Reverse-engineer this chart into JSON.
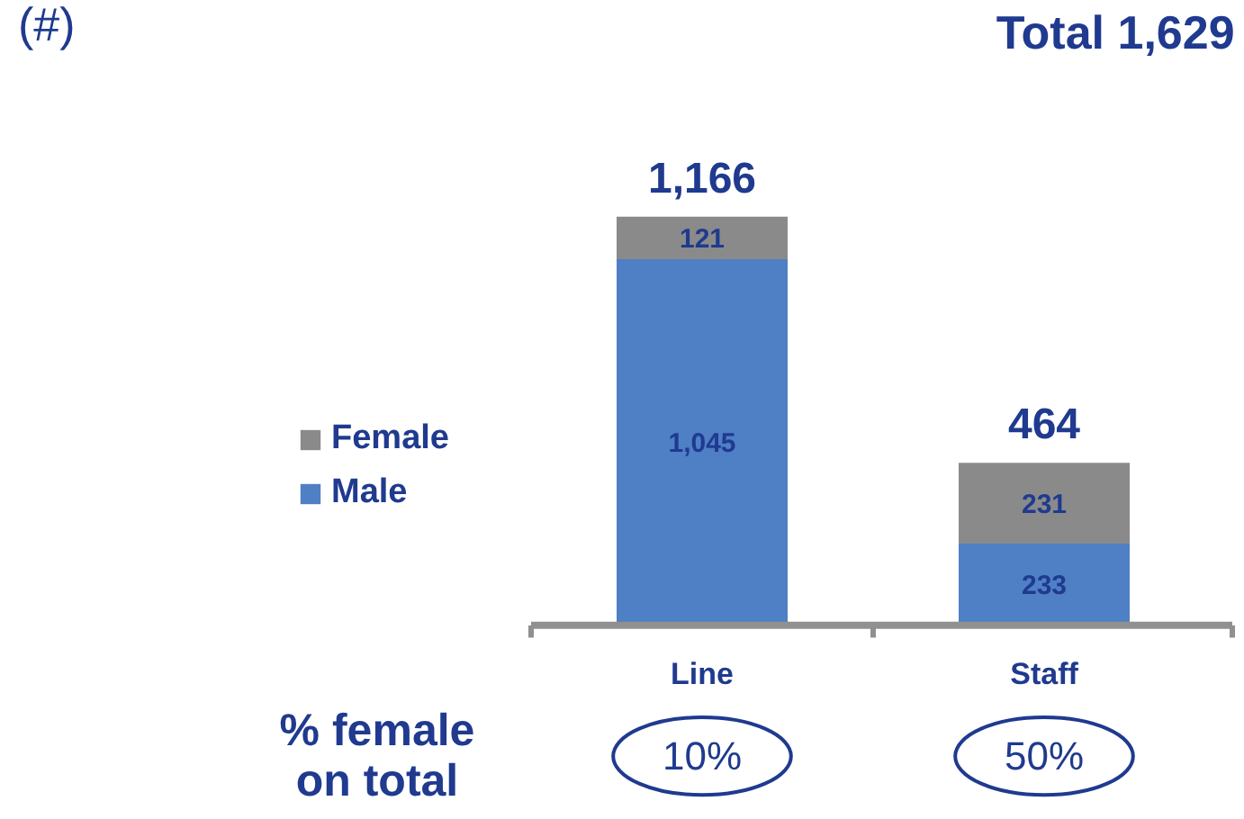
{
  "chart_data": {
    "type": "bar",
    "stacked": true,
    "title": "Total 1,629",
    "categories": [
      "Line",
      "Staff"
    ],
    "series": [
      {
        "name": "Male",
        "color": "#4f7fc4",
        "values": [
          1045,
          233
        ],
        "value_labels": [
          "1,045",
          "233"
        ]
      },
      {
        "name": "Female",
        "color": "#8a8a8a",
        "values": [
          121,
          231
        ],
        "value_labels": [
          "121",
          "231"
        ]
      }
    ],
    "totals": [
      "1,166",
      "464"
    ],
    "legend": "left",
    "grid": false,
    "annotations": [
      "(#)",
      "% female\non total",
      "10%",
      "50%"
    ]
  }
}
